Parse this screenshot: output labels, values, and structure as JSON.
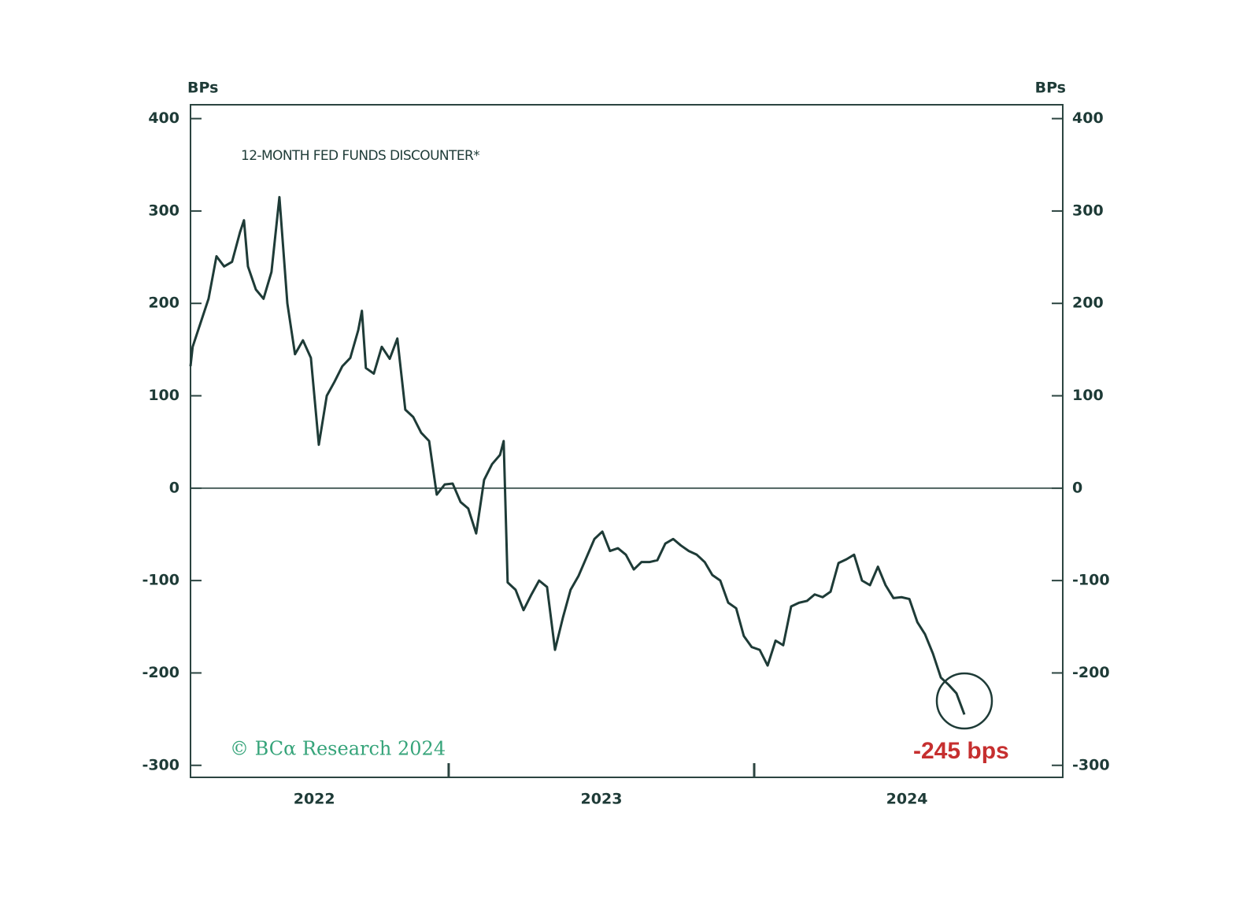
{
  "chart_data": {
    "type": "line",
    "title": "12-MONTH FED FUNDS DISCOUNTER*",
    "ylabel": "BPs",
    "y2label": "BPs",
    "source": "© BCα Research 2024",
    "annotation": "-245 bps",
    "color": "#1e3b37",
    "xlim": [
      2022.155,
      2025.01
    ],
    "xticks": [
      {
        "value": 2022.56,
        "label": "2022"
      },
      {
        "value": 2023.5,
        "label": "2023"
      },
      {
        "value": 2024.5,
        "label": "2024"
      }
    ],
    "year_ticks": [
      2023,
      2024
    ],
    "ylim": [
      -313,
      415
    ],
    "yticks": [
      -300,
      -200,
      -100,
      0,
      100,
      200,
      300,
      400
    ],
    "y2lim": [
      -313,
      415
    ],
    "y2ticks": [
      -300,
      -200,
      -100,
      0,
      100,
      200,
      300,
      400
    ],
    "x": [
      2022.155,
      2022.162,
      2022.188,
      2022.214,
      2022.24,
      2022.265,
      2022.291,
      2022.317,
      2022.33,
      2022.343,
      2022.369,
      2022.394,
      2022.42,
      2022.446,
      2022.472,
      2022.497,
      2022.523,
      2022.549,
      2022.575,
      2022.601,
      2022.626,
      2022.652,
      2022.678,
      2022.704,
      2022.716,
      2022.729,
      2022.755,
      2022.781,
      2022.807,
      2022.832,
      2022.858,
      2022.884,
      2022.91,
      2022.936,
      2022.961,
      2022.987,
      2023.013,
      2023.039,
      2023.064,
      2023.09,
      2023.116,
      2023.142,
      2023.168,
      2023.18,
      2023.193,
      2023.219,
      2023.245,
      2023.271,
      2023.296,
      2023.322,
      2023.348,
      2023.374,
      2023.399,
      2023.425,
      2023.451,
      2023.477,
      2023.503,
      2023.528,
      2023.554,
      2023.58,
      2023.606,
      2023.631,
      2023.657,
      2023.683,
      2023.709,
      2023.735,
      2023.76,
      2023.786,
      2023.812,
      2023.838,
      2023.863,
      2023.889,
      2023.915,
      2023.941,
      2023.966,
      2023.992,
      2024.018,
      2024.044,
      2024.07,
      2024.095,
      2024.121,
      2024.147,
      2024.173,
      2024.198,
      2024.224,
      2024.25,
      2024.276,
      2024.302,
      2024.327,
      2024.353,
      2024.379,
      2024.405,
      2024.43,
      2024.456,
      2024.482,
      2024.508,
      2024.534,
      2024.559,
      2024.585,
      2024.611,
      2024.637,
      2024.662,
      2024.688
    ],
    "values": [
      132,
      153,
      179,
      205,
      251,
      240,
      245,
      277,
      290,
      240,
      215,
      205,
      234,
      315,
      200,
      145,
      160,
      141,
      47,
      100,
      115,
      132,
      141,
      171,
      192,
      130,
      124,
      153,
      140,
      162,
      85,
      77,
      60,
      51,
      -7,
      4,
      5,
      -15,
      -22,
      -49,
      9,
      26,
      36,
      51,
      -102,
      -110,
      -132,
      -115,
      -100,
      -107,
      -175,
      -140,
      -110,
      -95,
      -75,
      -55,
      -47,
      -68,
      -65,
      -72,
      -88,
      -80,
      -80,
      -78,
      -60,
      -55,
      -62,
      -68,
      -72,
      -80,
      -94,
      -100,
      -124,
      -130,
      -160,
      -172,
      -175,
      -192,
      -165,
      -170,
      -128,
      -124,
      -122,
      -115,
      -118,
      -112,
      -81,
      -77,
      -72,
      -100,
      -105,
      -85,
      -105,
      -119,
      -118,
      -120,
      -145,
      -158,
      -179,
      -205,
      -213,
      -222,
      -245
    ]
  }
}
